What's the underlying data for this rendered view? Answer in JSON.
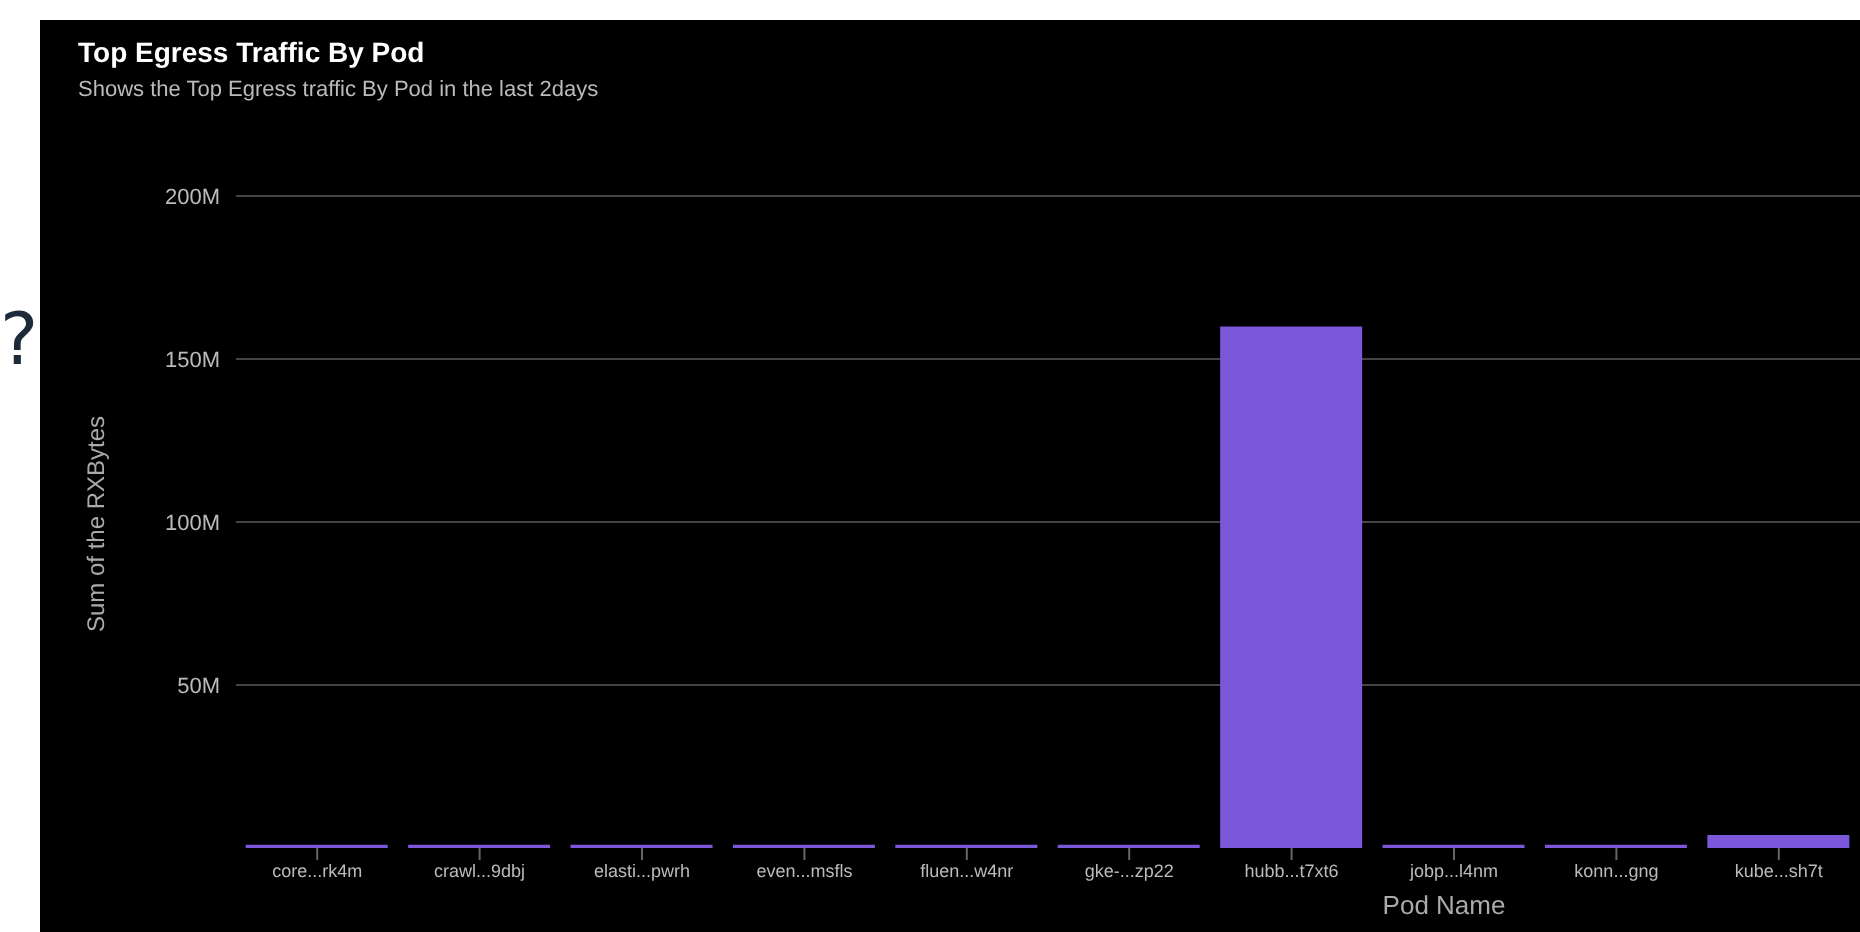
{
  "chart_data": {
    "type": "bar",
    "title": "Top Egress Traffic By Pod",
    "subtitle": "Shows the Top Egress traffic By Pod in the last 2days",
    "xlabel": "Pod Name",
    "ylabel": "Sum of the RXBytes",
    "annotations": [
      "?"
    ],
    "categories": [
      "core...rk4m",
      "crawl...9dbj",
      "elasti...pwrh",
      "even...msfls",
      "fluen...w4nr",
      "gke-...zp22",
      "hubb...t7xt6",
      "jobp...l4nm",
      "konn...gng",
      "kube...sh7t"
    ],
    "values": [
      1000000,
      1000000,
      1000000,
      1000000,
      1000000,
      1000000,
      160000000,
      1000000,
      1000000,
      4000000
    ],
    "color": "#7b57d9",
    "ylim": [
      0,
      200000000
    ],
    "yticks": [
      {
        "value": 50000000,
        "label": "50M"
      },
      {
        "value": 100000000,
        "label": "100M"
      },
      {
        "value": 150000000,
        "label": "150M"
      },
      {
        "value": 200000000,
        "label": "200M"
      }
    ],
    "grid": "y"
  }
}
